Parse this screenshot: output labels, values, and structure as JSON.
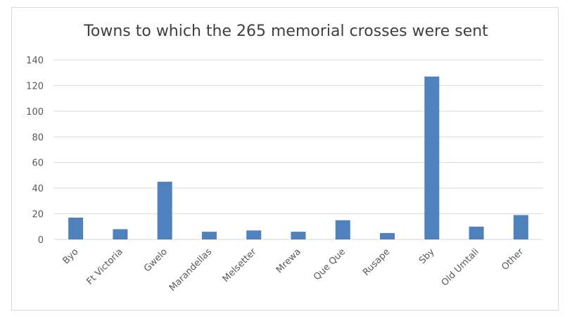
{
  "chart_data": {
    "type": "bar",
    "title": "Towns to which the 265 memorial crosses were sent",
    "xlabel": "",
    "ylabel": "",
    "categories": [
      "Byo",
      "Ft Victoria",
      "Gwelo",
      "Marandellas",
      "Melsetter",
      "Mrewa",
      "Que Que",
      "Rusape",
      "Sby",
      "Old Umtali",
      "Other"
    ],
    "values": [
      17,
      8,
      45,
      6,
      7,
      6,
      15,
      5,
      127,
      10,
      19
    ],
    "ylim": [
      0,
      140
    ],
    "yticks": [
      0,
      20,
      40,
      60,
      80,
      100,
      120,
      140
    ],
    "grid": true,
    "bar_color": "#4f81bd",
    "grid_color": "#d9d9d9"
  }
}
